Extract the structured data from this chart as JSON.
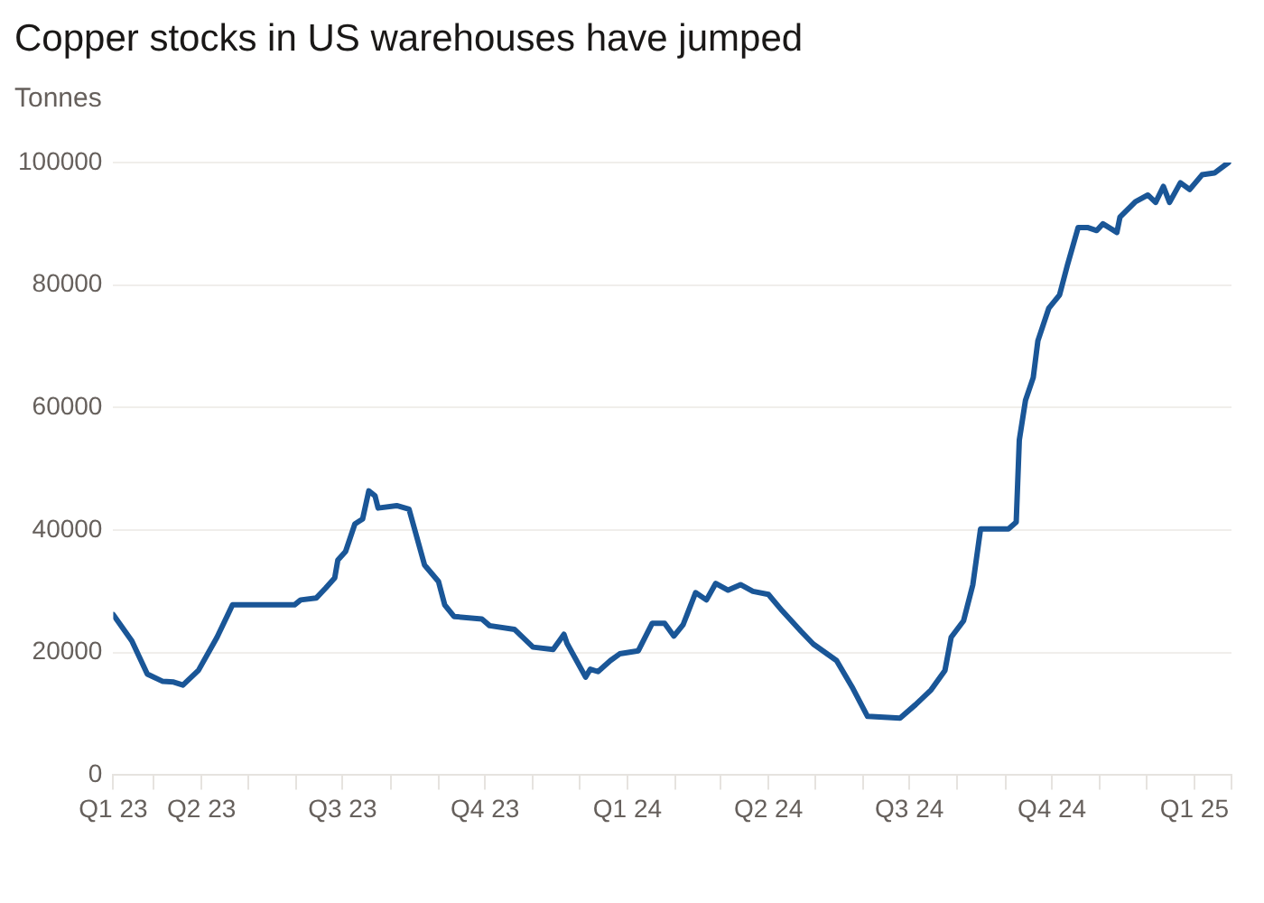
{
  "chart_data": {
    "type": "line",
    "title": "Copper stocks in US warehouses have jumped",
    "ylabel": "Tonnes",
    "x": [
      "2023-02-03",
      "2023-02-15",
      "2023-02-25",
      "2023-03-07",
      "2023-03-14",
      "2023-03-20",
      "2023-03-30",
      "2023-04-11",
      "2023-04-21",
      "2023-05-31",
      "2023-06-04",
      "2023-06-14",
      "2023-06-20",
      "2023-06-26",
      "2023-06-28",
      "2023-07-03",
      "2023-07-09",
      "2023-07-14",
      "2023-07-18",
      "2023-07-22",
      "2023-07-24",
      "2023-08-05",
      "2023-08-13",
      "2023-08-23",
      "2023-09-01",
      "2023-09-05",
      "2023-09-11",
      "2023-09-29",
      "2023-10-04",
      "2023-10-20",
      "2023-11-01",
      "2023-11-14",
      "2023-11-18",
      "2023-11-21",
      "2023-11-23",
      "2023-12-05",
      "2023-12-08",
      "2023-12-13",
      "2023-12-21",
      "2023-12-27",
      "2024-01-08",
      "2024-01-17",
      "2024-01-25",
      "2024-01-31",
      "2024-02-06",
      "2024-02-14",
      "2024-02-21",
      "2024-02-27",
      "2024-03-06",
      "2024-03-14",
      "2024-03-22",
      "2024-04-01",
      "2024-04-10",
      "2024-04-22",
      "2024-04-30",
      "2024-05-15",
      "2024-05-25",
      "2024-06-04",
      "2024-06-25",
      "2024-07-05",
      "2024-07-15",
      "2024-07-24",
      "2024-07-28",
      "2024-08-05",
      "2024-08-11",
      "2024-08-16",
      "2024-09-03",
      "2024-09-08",
      "2024-09-10",
      "2024-09-14",
      "2024-09-19",
      "2024-09-22",
      "2024-09-29",
      "2024-10-06",
      "2024-10-11",
      "2024-10-18",
      "2024-10-24",
      "2024-10-30",
      "2024-11-03",
      "2024-11-12",
      "2024-11-14",
      "2024-11-24",
      "2024-12-02",
      "2024-12-07",
      "2024-12-12",
      "2024-12-16",
      "2024-12-23",
      "2024-12-29",
      "2025-01-06",
      "2025-01-14",
      "2025-01-23"
    ],
    "series": [
      {
        "color": "#1a5697",
        "values": [
          26200,
          21900,
          16500,
          15300,
          15200,
          14700,
          17100,
          22500,
          27800,
          27800,
          28600,
          28900,
          30500,
          32200,
          35100,
          36500,
          41000,
          41800,
          46400,
          45600,
          43600,
          44000,
          43400,
          34300,
          31600,
          27800,
          25900,
          25500,
          24400,
          23800,
          20900,
          20500,
          21900,
          23000,
          21500,
          16000,
          17300,
          16900,
          18700,
          19800,
          20300,
          24800,
          24800,
          22700,
          24600,
          29800,
          28600,
          31300,
          30200,
          31100,
          30000,
          29500,
          26800,
          23500,
          21400,
          18700,
          14400,
          9600,
          9300,
          11500,
          13900,
          17100,
          22500,
          25200,
          31100,
          40200,
          40200,
          41300,
          54700,
          61200,
          64900,
          70900,
          76200,
          78400,
          83200,
          89400,
          89400,
          88900,
          90000,
          88600,
          91100,
          93600,
          94700,
          93500,
          96100,
          93500,
          96700,
          95600,
          98000,
          98300,
          100000
        ]
      }
    ],
    "xlim": [
      "2023-02-03",
      "2025-01-25"
    ],
    "xticks": [
      {
        "value": "2023-02-03",
        "label": "Q1 23"
      },
      {
        "value": "2023-03-01",
        "label": null
      },
      {
        "value": "2023-04-01",
        "label": "Q2 23"
      },
      {
        "value": "2023-05-01",
        "label": null
      },
      {
        "value": "2023-06-01",
        "label": null
      },
      {
        "value": "2023-07-01",
        "label": "Q3 23"
      },
      {
        "value": "2023-08-01",
        "label": null
      },
      {
        "value": "2023-09-01",
        "label": null
      },
      {
        "value": "2023-10-01",
        "label": "Q4 23"
      },
      {
        "value": "2023-11-01",
        "label": null
      },
      {
        "value": "2023-12-01",
        "label": null
      },
      {
        "value": "2024-01-01",
        "label": "Q1 24"
      },
      {
        "value": "2024-02-01",
        "label": null
      },
      {
        "value": "2024-03-01",
        "label": null
      },
      {
        "value": "2024-04-01",
        "label": "Q2 24"
      },
      {
        "value": "2024-05-01",
        "label": null
      },
      {
        "value": "2024-06-01",
        "label": null
      },
      {
        "value": "2024-07-01",
        "label": "Q3 24"
      },
      {
        "value": "2024-08-01",
        "label": null
      },
      {
        "value": "2024-09-01",
        "label": null
      },
      {
        "value": "2024-10-01",
        "label": "Q4 24"
      },
      {
        "value": "2024-11-01",
        "label": null
      },
      {
        "value": "2024-12-01",
        "label": null
      },
      {
        "value": "2025-01-01",
        "label": "Q1 25"
      },
      {
        "value": "2025-01-25",
        "label": null
      }
    ],
    "ylim": [
      0,
      100000
    ],
    "yticks": [
      0,
      20000,
      40000,
      60000,
      80000,
      100000
    ],
    "grid": "y",
    "legend": false,
    "marker": "none",
    "line_style": "solid"
  }
}
